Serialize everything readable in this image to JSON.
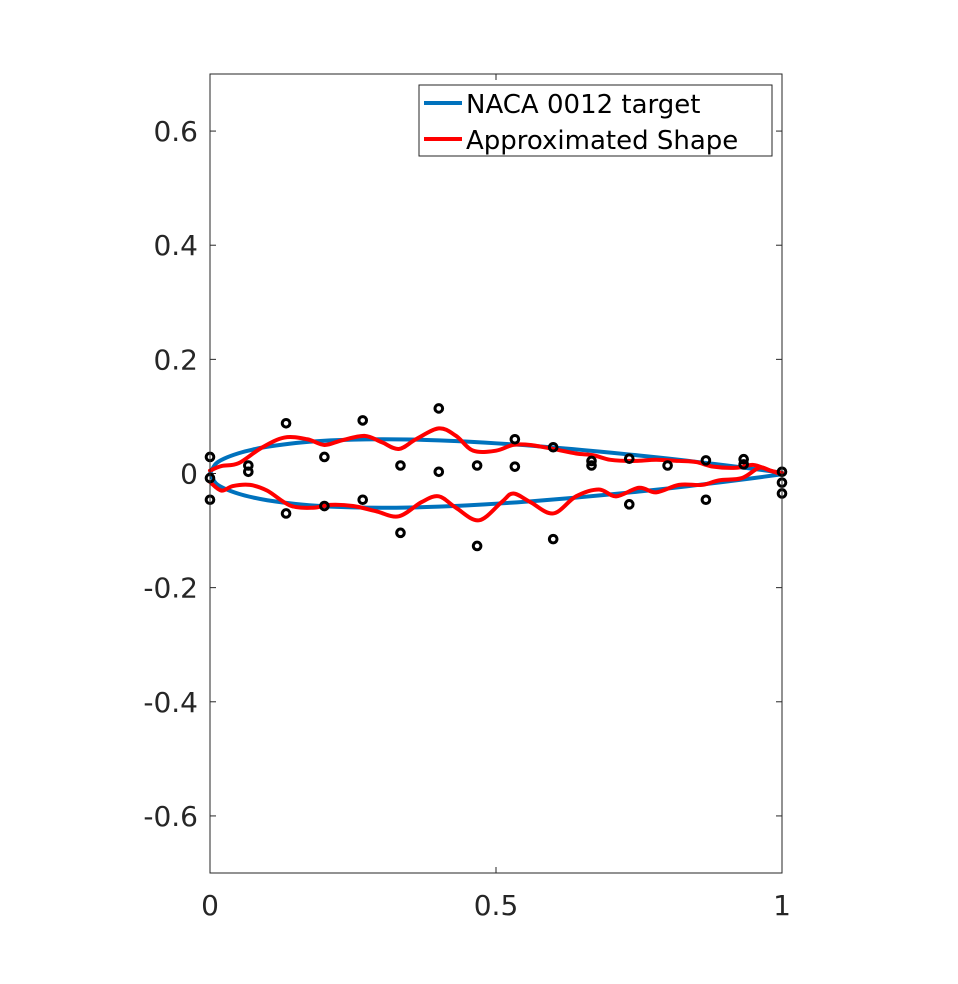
{
  "chart_data": {
    "type": "line",
    "title": "",
    "xlabel": "",
    "ylabel": "",
    "xlim": [
      0,
      1
    ],
    "ylim": [
      -0.7,
      0.7
    ],
    "xticks": [
      0,
      0.5,
      1
    ],
    "xtick_labels": [
      "0",
      "0.5",
      "1"
    ],
    "yticks": [
      -0.6,
      -0.4,
      -0.2,
      0,
      0.2,
      0.4,
      0.6
    ],
    "ytick_labels": [
      "-0.6",
      "-0.4",
      "-0.2",
      "0",
      "0.2",
      "0.4",
      "0.6"
    ],
    "grid": false,
    "legend_position": "top-right",
    "series": [
      {
        "name": "NACA 0012 target",
        "color": "#0072BD",
        "line_style": "solid",
        "upper": {
          "x": [
            0,
            0.01,
            0.025,
            0.05,
            0.075,
            0.1,
            0.15,
            0.2,
            0.25,
            0.3,
            0.35,
            0.4,
            0.45,
            0.5,
            0.55,
            0.6,
            0.65,
            0.7,
            0.75,
            0.8,
            0.85,
            0.9,
            0.95,
            1.0
          ],
          "y": [
            0,
            0.0169,
            0.0262,
            0.0355,
            0.042,
            0.0468,
            0.0534,
            0.0574,
            0.0594,
            0.06,
            0.0595,
            0.058,
            0.0558,
            0.0529,
            0.0496,
            0.0456,
            0.0413,
            0.0366,
            0.0316,
            0.0262,
            0.0205,
            0.0145,
            0.0081,
            0.0013
          ]
        },
        "lower": {
          "x": [
            0,
            0.01,
            0.025,
            0.05,
            0.075,
            0.1,
            0.15,
            0.2,
            0.25,
            0.3,
            0.35,
            0.4,
            0.45,
            0.5,
            0.55,
            0.6,
            0.65,
            0.7,
            0.75,
            0.8,
            0.85,
            0.9,
            0.95,
            1.0
          ],
          "y": [
            0,
            -0.0169,
            -0.0262,
            -0.0355,
            -0.042,
            -0.0468,
            -0.0534,
            -0.0574,
            -0.0594,
            -0.06,
            -0.0595,
            -0.058,
            -0.0558,
            -0.0529,
            -0.0496,
            -0.0456,
            -0.0413,
            -0.0366,
            -0.0316,
            -0.0262,
            -0.0205,
            -0.0145,
            -0.0081,
            -0.0013
          ]
        }
      },
      {
        "name": "Approximated Shape",
        "color": "#FF0000",
        "line_style": "solid",
        "upper": {
          "x": [
            0,
            0.02,
            0.05,
            0.09,
            0.13,
            0.17,
            0.2,
            0.23,
            0.27,
            0.3,
            0.33,
            0.36,
            0.4,
            0.43,
            0.46,
            0.5,
            0.53,
            0.56,
            0.6,
            0.64,
            0.67,
            0.7,
            0.74,
            0.78,
            0.82,
            0.85,
            0.88,
            0.92,
            0.95,
            0.98,
            1.0
          ],
          "y": [
            0.005,
            0.013,
            0.018,
            0.045,
            0.063,
            0.06,
            0.05,
            0.058,
            0.066,
            0.055,
            0.043,
            0.06,
            0.079,
            0.066,
            0.04,
            0.04,
            0.05,
            0.05,
            0.043,
            0.035,
            0.032,
            0.024,
            0.022,
            0.024,
            0.022,
            0.02,
            0.012,
            0.01,
            0.015,
            0.005,
            0.001
          ]
        },
        "lower": {
          "x": [
            0,
            0.02,
            0.04,
            0.07,
            0.1,
            0.14,
            0.18,
            0.21,
            0.25,
            0.29,
            0.33,
            0.37,
            0.4,
            0.43,
            0.47,
            0.51,
            0.53,
            0.56,
            0.6,
            0.64,
            0.68,
            0.71,
            0.75,
            0.78,
            0.82,
            0.86,
            0.89,
            0.93,
            0.96,
            0.98,
            1.0
          ],
          "y": [
            -0.015,
            -0.03,
            -0.022,
            -0.02,
            -0.03,
            -0.056,
            -0.06,
            -0.055,
            -0.057,
            -0.066,
            -0.075,
            -0.05,
            -0.04,
            -0.06,
            -0.082,
            -0.05,
            -0.035,
            -0.05,
            -0.07,
            -0.04,
            -0.028,
            -0.04,
            -0.025,
            -0.033,
            -0.02,
            -0.02,
            -0.012,
            -0.008,
            0.01,
            0.005,
            -0.002
          ]
        }
      },
      {
        "name": "",
        "color": "#000000",
        "marker": "circle",
        "line_style": "none",
        "points": [
          {
            "x": 0.0,
            "y": 0.029
          },
          {
            "x": 0.0,
            "y": -0.008
          },
          {
            "x": 0.0,
            "y": -0.046
          },
          {
            "x": 0.067,
            "y": 0.014
          },
          {
            "x": 0.067,
            "y": 0.003
          },
          {
            "x": 0.133,
            "y": 0.088
          },
          {
            "x": 0.133,
            "y": -0.07
          },
          {
            "x": 0.2,
            "y": 0.029
          },
          {
            "x": 0.2,
            "y": -0.057
          },
          {
            "x": 0.267,
            "y": 0.093
          },
          {
            "x": 0.267,
            "y": -0.046
          },
          {
            "x": 0.333,
            "y": 0.014
          },
          {
            "x": 0.333,
            "y": -0.104
          },
          {
            "x": 0.4,
            "y": 0.114
          },
          {
            "x": 0.4,
            "y": 0.003
          },
          {
            "x": 0.467,
            "y": 0.014
          },
          {
            "x": 0.467,
            "y": -0.127
          },
          {
            "x": 0.533,
            "y": 0.06
          },
          {
            "x": 0.533,
            "y": 0.012
          },
          {
            "x": 0.6,
            "y": 0.046
          },
          {
            "x": 0.6,
            "y": -0.115
          },
          {
            "x": 0.667,
            "y": 0.022
          },
          {
            "x": 0.667,
            "y": 0.014
          },
          {
            "x": 0.733,
            "y": 0.026
          },
          {
            "x": 0.733,
            "y": -0.054
          },
          {
            "x": 0.8,
            "y": 0.014
          },
          {
            "x": 0.867,
            "y": 0.023
          },
          {
            "x": 0.867,
            "y": -0.046
          },
          {
            "x": 0.933,
            "y": 0.025
          },
          {
            "x": 0.933,
            "y": 0.016
          },
          {
            "x": 1.0,
            "y": 0.003
          },
          {
            "x": 1.0,
            "y": -0.016
          },
          {
            "x": 1.0,
            "y": -0.035
          }
        ]
      }
    ]
  }
}
